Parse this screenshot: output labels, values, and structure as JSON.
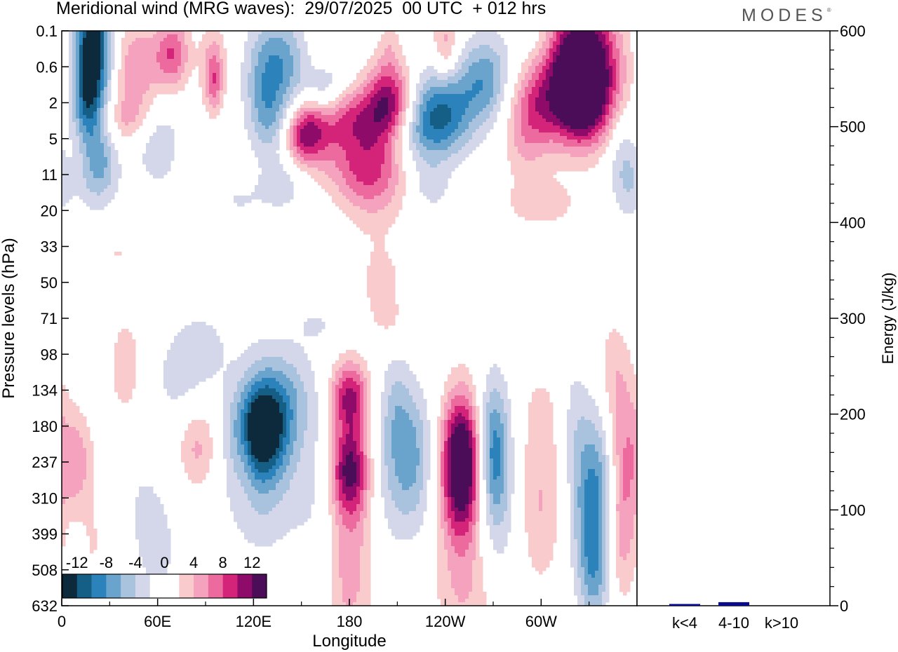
{
  "header": {
    "title": "Meridional wind (MRG waves):  29/07/2025  00 UTC  + 012 hrs",
    "logo": "MODES",
    "logo_mark": "®"
  },
  "chart_data": [
    {
      "type": "heatmap",
      "title": "Meridional wind (MRG waves)",
      "xlabel": "Longitude",
      "ylabel": "Pressure levels (hPa)",
      "xticks": [
        "0",
        "60E",
        "120E",
        "180",
        "120W",
        "60W"
      ],
      "yticks": [
        "0.1",
        "0.6",
        "2",
        "5",
        "11",
        "20",
        "33",
        "50",
        "71",
        "98",
        "134",
        "180",
        "237",
        "310",
        "399",
        "508",
        "632"
      ],
      "colorbar": {
        "labels": [
          "-12",
          "-8",
          "-4",
          "0",
          "4",
          "8",
          "12"
        ],
        "colors": [
          "#0c2a3c",
          "#155f86",
          "#2c83bb",
          "#6aa4cc",
          "#a9c2de",
          "#d3d7e9",
          "#ffffff",
          "#ffffff",
          "#f9cbcd",
          "#f4a2bd",
          "#ed6a9f",
          "#d4247a",
          "#8e0b69",
          "#4b0c58"
        ]
      },
      "regions": [
        {
          "lon": 20,
          "p": 0.25,
          "v": -13,
          "rl": 12,
          "rp": 2.3
        },
        {
          "lon": 17,
          "p": 1.1,
          "v": -5,
          "rl": 7,
          "rp": 1.6
        },
        {
          "lon": 48,
          "p": 0.6,
          "v": 6,
          "rl": 18,
          "rp": 1.3
        },
        {
          "lon": 70,
          "p": 0.3,
          "v": 7,
          "rl": 10,
          "rp": 1.0
        },
        {
          "lon": 95,
          "p": 1.0,
          "v": 6,
          "rl": 6,
          "rp": 0.9
        },
        {
          "lon": 95,
          "p": 0.35,
          "v": 3,
          "rl": 10,
          "rp": 1.2
        },
        {
          "lon": 60,
          "p": 5,
          "v": -4,
          "rl": 14,
          "rp": 1.3
        },
        {
          "lon": 40,
          "p": 3,
          "v": 4,
          "rl": 18,
          "rp": 0.7
        },
        {
          "lon": 25,
          "p": 8,
          "v": -4,
          "rl": 10,
          "rp": 1.0
        },
        {
          "lon": 20,
          "p": 13,
          "v": -2,
          "rl": 18,
          "rp": 0.9
        },
        {
          "lon": 135,
          "p": 0.6,
          "v": -8,
          "rl": 18,
          "rp": 1.5
        },
        {
          "lon": 125,
          "p": 1.5,
          "v": -2,
          "rl": 10,
          "rp": 1.2
        },
        {
          "lon": 132,
          "p": 3.5,
          "v": -4,
          "rl": 14,
          "rp": 0.9
        },
        {
          "lon": 165,
          "p": 1.2,
          "v": -5,
          "rl": 12,
          "rp": 0.8
        },
        {
          "lon": 140,
          "p": 12,
          "v": -3,
          "rl": 15,
          "rp": 0.9
        },
        {
          "lon": 110,
          "p": 17,
          "v": -2,
          "rl": 22,
          "rp": 0.9
        },
        {
          "lon": 152,
          "p": 4.5,
          "v": 11,
          "rl": 14,
          "rp": 0.9
        },
        {
          "lon": 183,
          "p": 3,
          "v": 8,
          "rl": 25,
          "rp": 0.9
        },
        {
          "lon": 205,
          "p": 1.8,
          "v": 10,
          "rl": 14,
          "rp": 1.2
        },
        {
          "lon": 190,
          "p": 9,
          "v": 7,
          "rl": 25,
          "rp": 1.0
        },
        {
          "lon": 195,
          "p": 16,
          "v": 3,
          "rl": 20,
          "rp": 1.2
        },
        {
          "lon": 163,
          "p": 0.3,
          "v": 2,
          "rl": 10,
          "rp": 1.0
        },
        {
          "lon": 205,
          "p": 0.15,
          "v": 2,
          "rl": 6,
          "rp": 0.8
        },
        {
          "lon": 238,
          "p": 2.5,
          "v": -10,
          "rl": 20,
          "rp": 1.2
        },
        {
          "lon": 240,
          "p": 0.2,
          "v": 5,
          "rl": 8,
          "rp": 1.0
        },
        {
          "lon": 220,
          "p": 5,
          "v": -4,
          "rl": 20,
          "rp": 0.9
        },
        {
          "lon": 265,
          "p": 0.9,
          "v": -7,
          "rl": 15,
          "rp": 1.2
        },
        {
          "lon": 230,
          "p": 13,
          "v": -3,
          "rl": 12,
          "rp": 0.6
        },
        {
          "lon": 325,
          "p": 0.35,
          "v": 14,
          "rl": 22,
          "rp": 2.0
        },
        {
          "lon": 325,
          "p": 1.2,
          "v": 8,
          "rl": 22,
          "rp": 1.3
        },
        {
          "lon": 295,
          "p": 2.2,
          "v": 6,
          "rl": 15,
          "rp": 1.1
        },
        {
          "lon": 325,
          "p": 2.8,
          "v": 4,
          "rl": 18,
          "rp": 1.0
        },
        {
          "lon": 290,
          "p": 6,
          "v": 3,
          "rl": 15,
          "rp": 1.1
        },
        {
          "lon": 350,
          "p": 6,
          "v": -3,
          "rl": 10,
          "rp": 1.3
        },
        {
          "lon": 300,
          "p": 18,
          "v": 3,
          "rl": 25,
          "rp": 0.7
        },
        {
          "lon": 355,
          "p": 13,
          "v": -3,
          "rl": 10,
          "rp": 1.0
        },
        {
          "lon": 300,
          "p": 0.12,
          "v": -2,
          "rl": 20,
          "rp": 0.7
        },
        {
          "lon": 10,
          "p": 2.5,
          "v": -2,
          "rl": 8,
          "rp": 0.8
        },
        {
          "lon": 200,
          "p": 50,
          "v": 3,
          "rl": 14,
          "rp": 1.1
        },
        {
          "lon": 205,
          "p": 75,
          "v": 2,
          "rl": 12,
          "rp": 0.7
        },
        {
          "lon": 235,
          "p": 30,
          "v": -2,
          "rl": 10,
          "rp": 1.0
        },
        {
          "lon": 160,
          "p": 75,
          "v": -2,
          "rl": 15,
          "rp": 0.6
        },
        {
          "lon": 35,
          "p": 35,
          "v": 2,
          "rl": 6,
          "rp": 0.5
        },
        {
          "lon": 40,
          "p": 110,
          "v": 3,
          "rl": 12,
          "rp": 1.8
        },
        {
          "lon": 75,
          "p": 120,
          "v": -3,
          "rl": 18,
          "rp": 1.5
        },
        {
          "lon": 90,
          "p": 90,
          "v": -2,
          "rl": 15,
          "rp": 1.0
        },
        {
          "lon": 10,
          "p": 240,
          "v": 5,
          "rl": 10,
          "rp": 1.4
        },
        {
          "lon": 50,
          "p": 330,
          "v": -2,
          "rl": 14,
          "rp": 2.0
        },
        {
          "lon": 80,
          "p": 420,
          "v": -1,
          "rl": 20,
          "rp": 2.0
        },
        {
          "lon": 85,
          "p": 210,
          "v": 5,
          "rl": 13,
          "rp": 1.3
        },
        {
          "lon": 115,
          "p": 215,
          "v": 2,
          "rl": 6,
          "rp": 1.3
        },
        {
          "lon": 125,
          "p": 185,
          "v": -11,
          "rl": 15,
          "rp": 1.2
        },
        {
          "lon": 125,
          "p": 220,
          "v": -6,
          "rl": 22,
          "rp": 2.5
        },
        {
          "lon": 140,
          "p": 140,
          "v": -4,
          "rl": 20,
          "rp": 1.3
        },
        {
          "lon": 160,
          "p": 300,
          "v": -2,
          "rl": 16,
          "rp": 2.5
        },
        {
          "lon": 180,
          "p": 140,
          "v": 10,
          "rl": 12,
          "rp": 1.0
        },
        {
          "lon": 180,
          "p": 250,
          "v": 12,
          "rl": 12,
          "rp": 1.3
        },
        {
          "lon": 180,
          "p": 500,
          "v": 5,
          "rl": 15,
          "rp": 2.5
        },
        {
          "lon": 203,
          "p": 220,
          "v": -2,
          "rl": 10,
          "rp": 3.0
        },
        {
          "lon": 218,
          "p": 230,
          "v": -7,
          "rl": 14,
          "rp": 2.0
        },
        {
          "lon": 210,
          "p": 150,
          "v": -2,
          "rl": 8,
          "rp": 1.4
        },
        {
          "lon": 250,
          "p": 230,
          "v": 14,
          "rl": 12,
          "rp": 1.8
        },
        {
          "lon": 250,
          "p": 350,
          "v": 5,
          "rl": 15,
          "rp": 2.5
        },
        {
          "lon": 270,
          "p": 220,
          "v": -9,
          "rl": 10,
          "rp": 2.0
        },
        {
          "lon": 275,
          "p": 350,
          "v": -2,
          "rl": 12,
          "rp": 2.5
        },
        {
          "lon": 300,
          "p": 160,
          "v": 2,
          "rl": 14,
          "rp": 1.5
        },
        {
          "lon": 300,
          "p": 330,
          "v": 4,
          "rl": 14,
          "rp": 2.2
        },
        {
          "lon": 320,
          "p": 160,
          "v": -2,
          "rl": 8,
          "rp": 1.6
        },
        {
          "lon": 333,
          "p": 300,
          "v": -9,
          "rl": 14,
          "rp": 2.3
        },
        {
          "lon": 333,
          "p": 520,
          "v": -5,
          "rl": 10,
          "rp": 1.5
        },
        {
          "lon": 353,
          "p": 200,
          "v": 5,
          "rl": 12,
          "rp": 1.9
        },
        {
          "lon": 350,
          "p": 380,
          "v": 6,
          "rl": 10,
          "rp": 2.0
        },
        {
          "lon": 345,
          "p": 110,
          "v": 3,
          "rl": 10,
          "rp": 1.5
        },
        {
          "lon": 255,
          "p": 620,
          "v": 2,
          "rl": 25,
          "rp": 1.2
        },
        {
          "lon": 20,
          "p": 430,
          "v": 2,
          "rl": 8,
          "rp": 1.2
        },
        {
          "lon": 60,
          "p": 450,
          "v": -2,
          "rl": 10,
          "rp": 1.4
        }
      ]
    },
    {
      "type": "bar",
      "categories": [
        "k<4",
        "4-10",
        "k>10"
      ],
      "values": [
        1,
        3,
        0
      ],
      "ylabel": "Energy (J/kg)",
      "ylim": [
        0,
        600
      ],
      "yticks": [
        "0",
        "100",
        "200",
        "300",
        "400",
        "500",
        "600"
      ],
      "bar_color": "#0a0a8c"
    }
  ]
}
